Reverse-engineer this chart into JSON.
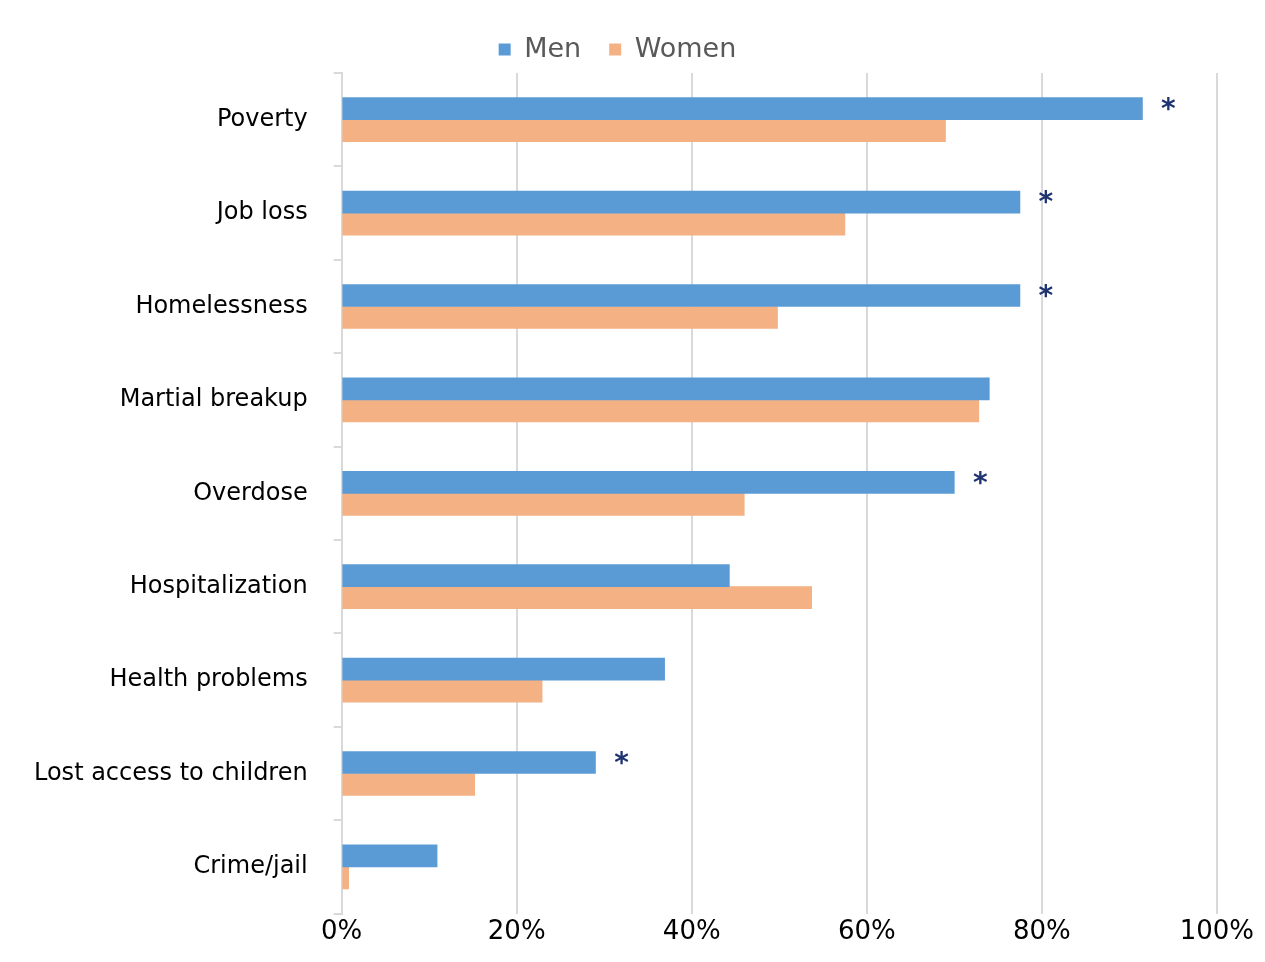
{
  "chart_data": {
    "type": "bar",
    "orientation": "horizontal",
    "categories": [
      "Poverty",
      "Job loss",
      "Homelessness",
      "Martial breakup",
      "Overdose",
      "Hospitalization",
      "Health problems",
      "Lost access to children",
      "Crime/jail"
    ],
    "series": [
      {
        "name": "Men",
        "color": "#5b9bd5",
        "values": [
          91.5,
          77.5,
          77.5,
          74,
          70,
          44.3,
          36.9,
          29,
          10.9
        ]
      },
      {
        "name": "Women",
        "color": "#f4b183",
        "values": [
          69,
          57.5,
          49.8,
          72.8,
          46,
          53.7,
          22.9,
          15.2,
          0.8
        ]
      }
    ],
    "xlim": [
      0,
      100
    ],
    "xticks": [
      {
        "value": 0,
        "label": "0%"
      },
      {
        "value": 20,
        "label": "20%"
      },
      {
        "value": 40,
        "label": "40%"
      },
      {
        "value": 60,
        "label": "60%"
      },
      {
        "value": 80,
        "label": "80%"
      },
      {
        "value": 100,
        "label": "100%"
      }
    ],
    "grid": "x",
    "legend": "top",
    "annotations": [
      {
        "text": "*",
        "x": 91.5,
        "y": "Poverty"
      },
      {
        "text": "*",
        "x": 77.5,
        "y": "Job loss"
      },
      {
        "text": "*",
        "x": 77.5,
        "y": "Homelessness"
      },
      {
        "text": "*",
        "x": 70,
        "y": "Overdose"
      },
      {
        "text": "*",
        "x": 29,
        "y": "Lost access to children"
      }
    ]
  }
}
